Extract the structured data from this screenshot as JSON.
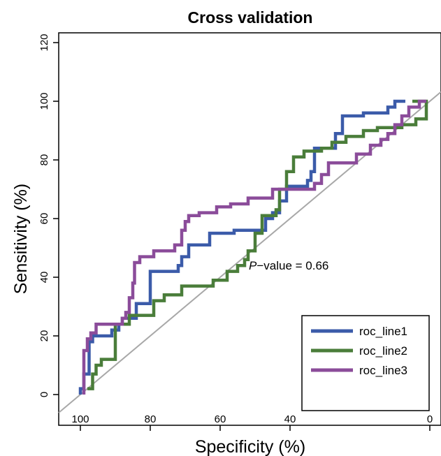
{
  "chart_data": {
    "type": "line",
    "title": "Cross validation",
    "xlabel": "Specificity (%)",
    "ylabel": "Sensitivity (%)",
    "xlim": [
      100,
      0
    ],
    "ylim": [
      0,
      120
    ],
    "x_ticks": [
      100,
      80,
      60,
      40,
      0
    ],
    "y_ticks": [
      0,
      20,
      40,
      60,
      80,
      100,
      120
    ],
    "reference_line": {
      "from": [
        100,
        0
      ],
      "to": [
        0,
        100
      ],
      "color": "#a8a8a8"
    },
    "annotation": {
      "italic": "P",
      "text": "−value = 0.66",
      "x": 51,
      "y": 43
    },
    "legend": {
      "position": "bottom-right"
    },
    "series": [
      {
        "name": "roc_line1",
        "color": "#3b5ba9",
        "points": [
          [
            100,
            0
          ],
          [
            100,
            2
          ],
          [
            99,
            2
          ],
          [
            99,
            7
          ],
          [
            97.5,
            7
          ],
          [
            97.5,
            18
          ],
          [
            96.5,
            18
          ],
          [
            96.5,
            20
          ],
          [
            91,
            20
          ],
          [
            91,
            22
          ],
          [
            89,
            22
          ],
          [
            89,
            24
          ],
          [
            88,
            24
          ],
          [
            88,
            26
          ],
          [
            84,
            26
          ],
          [
            84,
            31
          ],
          [
            80,
            31
          ],
          [
            80,
            42
          ],
          [
            72,
            42
          ],
          [
            72,
            44
          ],
          [
            71,
            44
          ],
          [
            71,
            47
          ],
          [
            69,
            47
          ],
          [
            69,
            51
          ],
          [
            63,
            51
          ],
          [
            63,
            55
          ],
          [
            56,
            55
          ],
          [
            56,
            56
          ],
          [
            47,
            56
          ],
          [
            47,
            60
          ],
          [
            45,
            60
          ],
          [
            45,
            62
          ],
          [
            43,
            62
          ],
          [
            43,
            66
          ],
          [
            41,
            66
          ],
          [
            41,
            71
          ],
          [
            35,
            71
          ],
          [
            35,
            73
          ],
          [
            34,
            73
          ],
          [
            34,
            76
          ],
          [
            33,
            76
          ],
          [
            33,
            84
          ],
          [
            27,
            84
          ],
          [
            27,
            89
          ],
          [
            25,
            89
          ],
          [
            25,
            95
          ],
          [
            19,
            95
          ],
          [
            19,
            96
          ],
          [
            12,
            96
          ],
          [
            12,
            98
          ],
          [
            10,
            98
          ],
          [
            10,
            100
          ],
          [
            7,
            100
          ]
        ]
      },
      {
        "name": "roc_line2",
        "color": "#4a7d3a",
        "points": [
          [
            98,
            2
          ],
          [
            96.5,
            2
          ],
          [
            96.5,
            7
          ],
          [
            95.5,
            7
          ],
          [
            95.5,
            10
          ],
          [
            94,
            10
          ],
          [
            94,
            12
          ],
          [
            90,
            12
          ],
          [
            90,
            24
          ],
          [
            86,
            24
          ],
          [
            86,
            27
          ],
          [
            79,
            27
          ],
          [
            79,
            32
          ],
          [
            76,
            32
          ],
          [
            76,
            34
          ],
          [
            71,
            34
          ],
          [
            71,
            37
          ],
          [
            62,
            37
          ],
          [
            62,
            39
          ],
          [
            58,
            39
          ],
          [
            58,
            42
          ],
          [
            55,
            42
          ],
          [
            55,
            44
          ],
          [
            53,
            44
          ],
          [
            53,
            46
          ],
          [
            52,
            46
          ],
          [
            52,
            49
          ],
          [
            50,
            49
          ],
          [
            50,
            55
          ],
          [
            48,
            55
          ],
          [
            48,
            61
          ],
          [
            44,
            61
          ],
          [
            44,
            63
          ],
          [
            43,
            63
          ],
          [
            43,
            70
          ],
          [
            41,
            70
          ],
          [
            41,
            76
          ],
          [
            39,
            76
          ],
          [
            39,
            81
          ],
          [
            36,
            81
          ],
          [
            36,
            83
          ],
          [
            31,
            83
          ],
          [
            31,
            84
          ],
          [
            28,
            84
          ],
          [
            28,
            86
          ],
          [
            24,
            86
          ],
          [
            24,
            88
          ],
          [
            19,
            88
          ],
          [
            19,
            90
          ],
          [
            15,
            90
          ],
          [
            15,
            91
          ],
          [
            8,
            91
          ],
          [
            8,
            92
          ],
          [
            4,
            92
          ],
          [
            4,
            94
          ],
          [
            1,
            94
          ],
          [
            1,
            100
          ],
          [
            5,
            100
          ]
        ]
      },
      {
        "name": "roc_line3",
        "color": "#8b4c9a",
        "points": [
          [
            99,
            0
          ],
          [
            99,
            15
          ],
          [
            98,
            15
          ],
          [
            98,
            19
          ],
          [
            97,
            19
          ],
          [
            97,
            21
          ],
          [
            95.5,
            21
          ],
          [
            95.5,
            24
          ],
          [
            88,
            24
          ],
          [
            88,
            26
          ],
          [
            87,
            26
          ],
          [
            87,
            28
          ],
          [
            86,
            28
          ],
          [
            86,
            33
          ],
          [
            85,
            33
          ],
          [
            85,
            38
          ],
          [
            84.5,
            38
          ],
          [
            84.5,
            45
          ],
          [
            83,
            45
          ],
          [
            83,
            47
          ],
          [
            79,
            47
          ],
          [
            79,
            49
          ],
          [
            73,
            49
          ],
          [
            73,
            51
          ],
          [
            71,
            51
          ],
          [
            71,
            56
          ],
          [
            70,
            56
          ],
          [
            70,
            59
          ],
          [
            69,
            59
          ],
          [
            69,
            61
          ],
          [
            66,
            61
          ],
          [
            66,
            62
          ],
          [
            61,
            62
          ],
          [
            61,
            64
          ],
          [
            57,
            64
          ],
          [
            57,
            65
          ],
          [
            52,
            65
          ],
          [
            52,
            67
          ],
          [
            45,
            67
          ],
          [
            45,
            70
          ],
          [
            33,
            70
          ],
          [
            33,
            72
          ],
          [
            31,
            72
          ],
          [
            31,
            75
          ],
          [
            29,
            75
          ],
          [
            29,
            79
          ],
          [
            21,
            79
          ],
          [
            21,
            82
          ],
          [
            17,
            82
          ],
          [
            17,
            85
          ],
          [
            14,
            85
          ],
          [
            14,
            87
          ],
          [
            12,
            87
          ],
          [
            12,
            89
          ],
          [
            10,
            89
          ],
          [
            10,
            92
          ],
          [
            8,
            92
          ],
          [
            8,
            95
          ],
          [
            6,
            95
          ],
          [
            6,
            98
          ],
          [
            3,
            98
          ],
          [
            3,
            100
          ],
          [
            1,
            100
          ]
        ]
      }
    ]
  }
}
